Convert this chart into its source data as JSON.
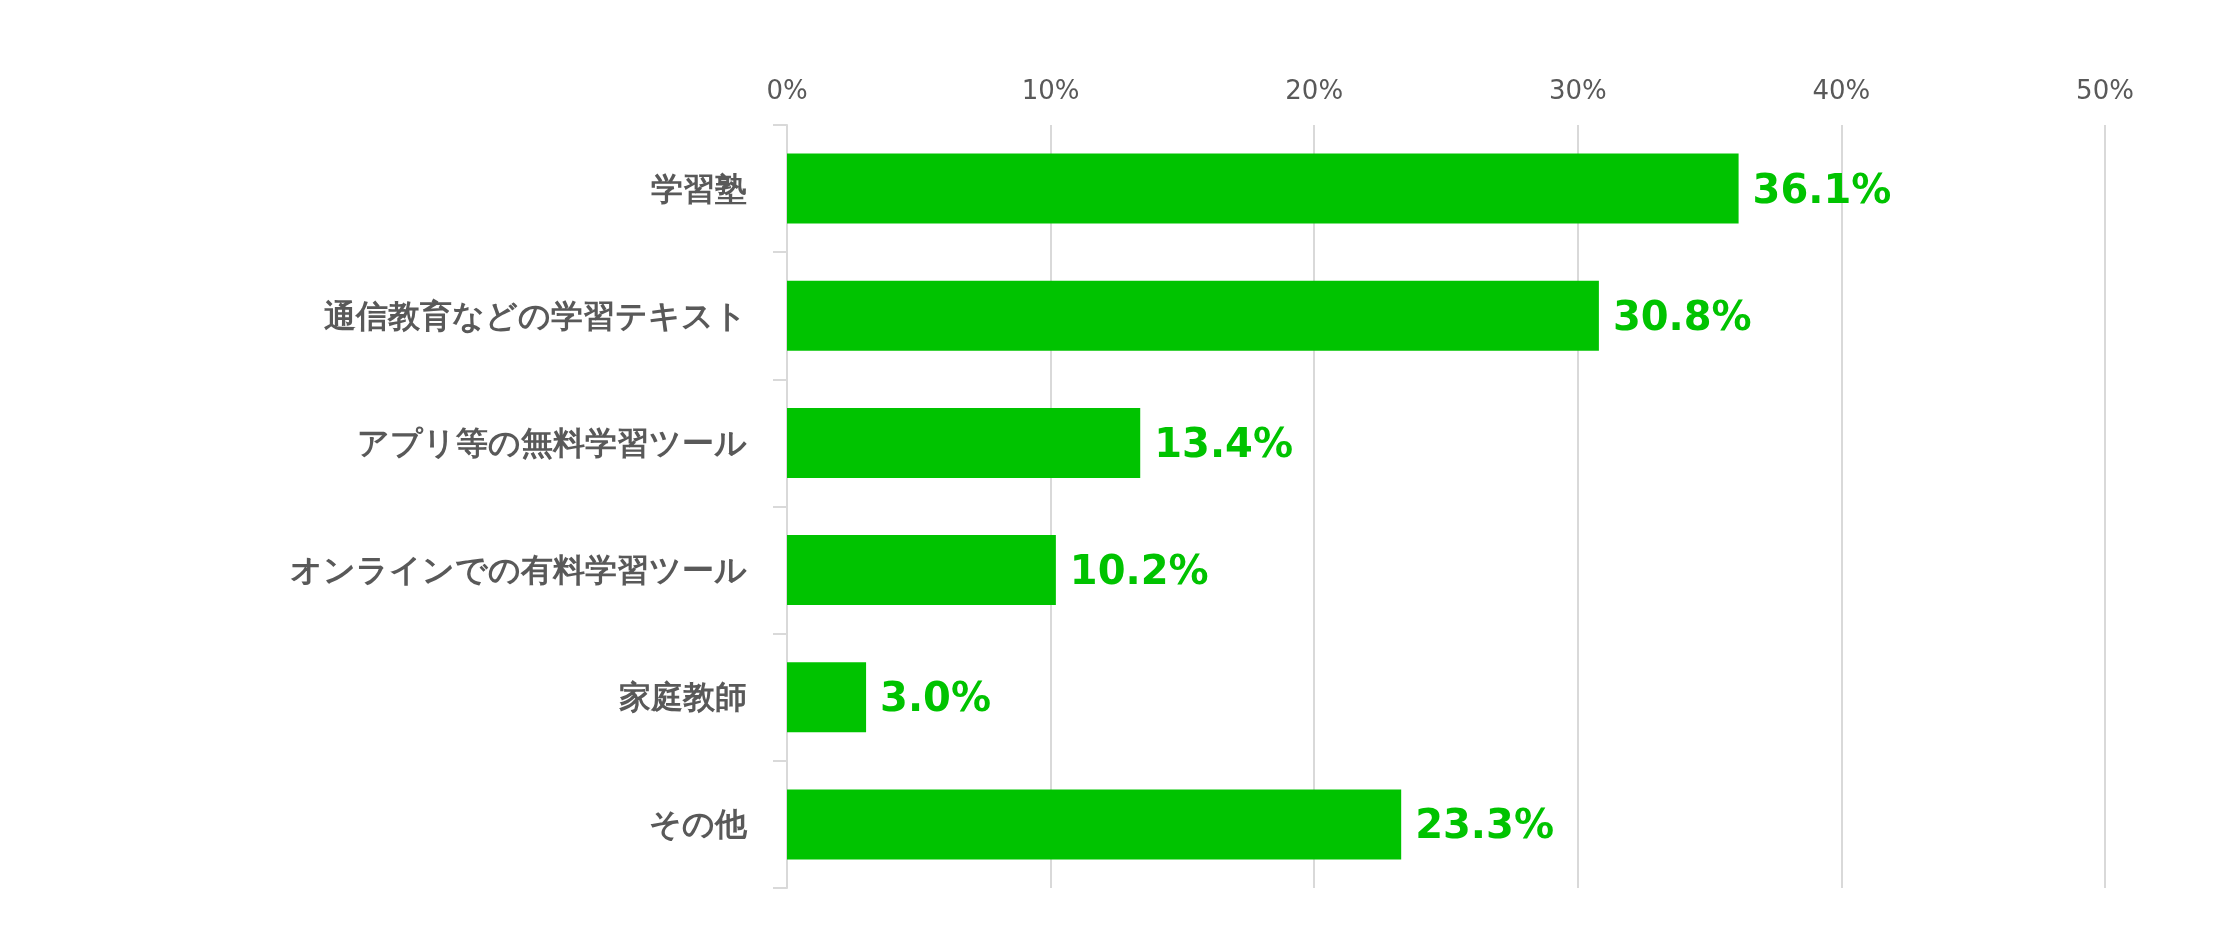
{
  "chart_data": {
    "type": "bar",
    "orientation": "horizontal",
    "categories": [
      "学習塾",
      "通信教育などの学習テキスト",
      "アプリ等の無料学習ツール",
      "オンラインでの有料学習ツール",
      "家庭教師",
      "その他"
    ],
    "values": [
      36.1,
      30.8,
      13.4,
      10.2,
      3.0,
      23.3
    ],
    "value_labels": [
      "36.1%",
      "30.8%",
      "13.4%",
      "10.2%",
      "3.0%",
      "23.3%"
    ],
    "color": "#00c300",
    "xlim": [
      0,
      50
    ],
    "xticks": [
      {
        "value": 0,
        "label": "0%"
      },
      {
        "value": 10,
        "label": "10%"
      },
      {
        "value": 20,
        "label": "20%"
      },
      {
        "value": 30,
        "label": "30%"
      },
      {
        "value": 40,
        "label": "40%"
      },
      {
        "value": 50,
        "label": "50%"
      }
    ],
    "grid": "x"
  }
}
